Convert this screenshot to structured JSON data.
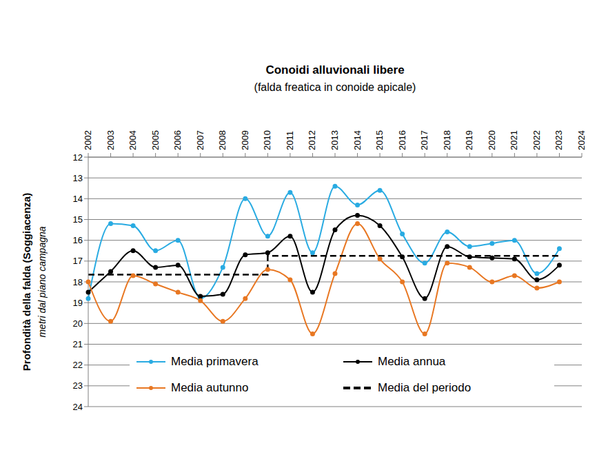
{
  "chart_data": {
    "type": "line",
    "title": "Conoidi alluvionali libere",
    "subtitle": "(falda freatica in conoide apicale)",
    "y_label": "Profondità della falda (Soggiacenza)",
    "y_unit": "metri dal piano campagna",
    "categories": [
      "2002",
      "2003",
      "2004",
      "2005",
      "2006",
      "2007",
      "2008",
      "2009",
      "2010",
      "2011",
      "2012",
      "2013",
      "2014",
      "2015",
      "2016",
      "2017",
      "2018",
      "2019",
      "2020",
      "2021",
      "2022",
      "2023",
      "2024"
    ],
    "ylim": [
      24,
      12
    ],
    "yticks": [
      12,
      13,
      14,
      15,
      16,
      17,
      18,
      19,
      20,
      21,
      22,
      23,
      24
    ],
    "grid": true,
    "legend": "bottom",
    "series": [
      {
        "name": "Media primavera",
        "color": "#29abe2",
        "marker": "circle",
        "line_style": "solid",
        "values": [
          18.8,
          15.2,
          15.3,
          16.5,
          16.0,
          18.8,
          17.3,
          14.0,
          15.8,
          13.7,
          16.6,
          13.4,
          14.3,
          13.6,
          15.7,
          17.1,
          15.6,
          16.3,
          16.15,
          16.0,
          17.6,
          16.4,
          null
        ]
      },
      {
        "name": "Media annua",
        "color": "#000000",
        "marker": "circle",
        "line_style": "solid",
        "values": [
          18.5,
          17.5,
          16.5,
          17.3,
          17.2,
          18.7,
          18.6,
          16.7,
          16.6,
          15.8,
          18.5,
          15.5,
          14.8,
          15.3,
          16.8,
          18.8,
          16.3,
          16.8,
          16.85,
          16.9,
          17.9,
          17.2,
          null
        ]
      },
      {
        "name": "Media autunno",
        "color": "#e87722",
        "marker": "circle",
        "line_style": "solid",
        "values": [
          18.0,
          19.9,
          17.7,
          18.1,
          18.5,
          18.9,
          19.9,
          18.8,
          17.4,
          17.9,
          20.5,
          17.6,
          15.2,
          16.9,
          18.0,
          20.5,
          17.1,
          17.3,
          18.0,
          17.7,
          18.3,
          18.0,
          null
        ]
      },
      {
        "name": "Media del periodo",
        "color": "#000000",
        "marker": "none",
        "line_style": "dashed",
        "values": [
          17.65,
          17.65,
          17.65,
          17.65,
          17.65,
          17.65,
          17.65,
          17.65,
          16.75,
          16.75,
          16.75,
          16.75,
          16.75,
          16.75,
          16.75,
          16.75,
          16.75,
          16.75,
          16.75,
          16.75,
          16.75,
          16.75,
          null
        ]
      }
    ]
  }
}
